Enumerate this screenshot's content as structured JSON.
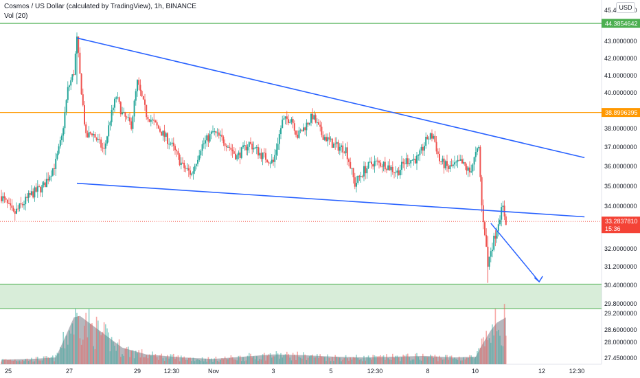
{
  "header": {
    "title": "Cosmos / US Dollar (calculated by TradingView), 1h, BINANCE",
    "volume_label": "Vol (20)",
    "currency_button": "USD"
  },
  "chart_data": {
    "type": "candlestick",
    "title": "Cosmos / US Dollar (calculated by TradingView), 1h, BINANCE",
    "timeframe": "1h",
    "exchange": "BINANCE",
    "ylim": [
      27.2,
      45.5
    ],
    "y_ticks": [
      {
        "label": "45.4000000",
        "value": 45.4
      },
      {
        "label": "43.0000000",
        "value": 43.0
      },
      {
        "label": "42.0000000",
        "value": 42.0
      },
      {
        "label": "41.0000000",
        "value": 41.0
      },
      {
        "label": "40.0000000",
        "value": 40.0
      },
      {
        "label": "38.0000000",
        "value": 38.0
      },
      {
        "label": "37.0000000",
        "value": 37.0
      },
      {
        "label": "36.0000000",
        "value": 36.0
      },
      {
        "label": "35.0000000",
        "value": 35.0
      },
      {
        "label": "34.0000000",
        "value": 34.0
      },
      {
        "label": "32.0000000",
        "value": 32.0
      },
      {
        "label": "31.2000000",
        "value": 31.2
      },
      {
        "label": "30.4000000",
        "value": 30.4
      },
      {
        "label": "29.8000000",
        "value": 29.8
      },
      {
        "label": "29.2000000",
        "value": 29.2
      },
      {
        "label": "28.6000000",
        "value": 28.6
      },
      {
        "label": "28.0000000",
        "value": 28.0
      },
      {
        "label": "27.4500000",
        "value": 27.45
      }
    ],
    "x_ticks": [
      "25",
      "27",
      "29",
      "12:30",
      "Nov",
      "3",
      "5",
      "12:30",
      "8",
      "10",
      "12",
      "12:30"
    ],
    "price_tags": [
      {
        "label": "44.3854642",
        "value": 44.3854642,
        "color": "#4caf50"
      },
      {
        "label": "38.8996395",
        "value": 38.8996395,
        "color": "#ff9800"
      },
      {
        "label": "33.2837810",
        "value": 33.283781,
        "color": "#f44336",
        "sublabel": "15:36"
      }
    ],
    "horizontal_lines": [
      {
        "value": 44.3854642,
        "color": "#4caf50"
      },
      {
        "value": 38.8996395,
        "color": "#ff9800"
      }
    ],
    "support_zone": {
      "low": 29.5,
      "high": 30.45,
      "color": "#4caf50"
    },
    "trendlines": [
      {
        "from": {
          "time": "Oct 27 08:00",
          "price": 43.25
        },
        "to": {
          "time": "Nov 12 18:00",
          "price": 36.45
        },
        "color": "#2962ff"
      },
      {
        "from": {
          "time": "Oct 27 08:00",
          "price": 35.15
        },
        "to": {
          "time": "Nov 12 18:00",
          "price": 33.5
        },
        "color": "#2962ff"
      }
    ],
    "arrow": {
      "from": {
        "time": "Nov 11 10:00",
        "price": 33.2
      },
      "to": {
        "time": "Nov 11 23:00",
        "price": 30.55
      },
      "color": "#2962ff"
    },
    "colors": {
      "up": "#26a69a",
      "down": "#ef5350",
      "volume_area": "#787b86"
    },
    "price_path": [
      {
        "t": 0,
        "p": 34.5
      },
      {
        "t": 4,
        "p": 33.6
      },
      {
        "t": 10,
        "p": 34.6
      },
      {
        "t": 14,
        "p": 35.0
      },
      {
        "t": 18,
        "p": 36.2
      },
      {
        "t": 20,
        "p": 37.5
      },
      {
        "t": 22,
        "p": 40.2
      },
      {
        "t": 24,
        "p": 41.2
      },
      {
        "t": 25,
        "p": 43.2
      },
      {
        "t": 26,
        "p": 41.0
      },
      {
        "t": 28,
        "p": 37.5
      },
      {
        "t": 30,
        "p": 37.8
      },
      {
        "t": 34,
        "p": 36.8
      },
      {
        "t": 36,
        "p": 38.5
      },
      {
        "t": 38,
        "p": 39.8
      },
      {
        "t": 40,
        "p": 38.8
      },
      {
        "t": 43,
        "p": 38.2
      },
      {
        "t": 45,
        "p": 40.6
      },
      {
        "t": 48,
        "p": 38.8
      },
      {
        "t": 52,
        "p": 38.0
      },
      {
        "t": 56,
        "p": 37.2
      },
      {
        "t": 60,
        "p": 36.0
      },
      {
        "t": 63,
        "p": 35.6
      },
      {
        "t": 66,
        "p": 37.0
      },
      {
        "t": 70,
        "p": 37.8
      },
      {
        "t": 74,
        "p": 37.3
      },
      {
        "t": 78,
        "p": 36.5
      },
      {
        "t": 82,
        "p": 37.2
      },
      {
        "t": 86,
        "p": 36.6
      },
      {
        "t": 90,
        "p": 36.2
      },
      {
        "t": 93,
        "p": 38.4
      },
      {
        "t": 96,
        "p": 38.6
      },
      {
        "t": 98,
        "p": 37.6
      },
      {
        "t": 100,
        "p": 38.0
      },
      {
        "t": 103,
        "p": 38.7
      },
      {
        "t": 106,
        "p": 37.7
      },
      {
        "t": 110,
        "p": 37.1
      },
      {
        "t": 114,
        "p": 36.9
      },
      {
        "t": 117,
        "p": 35.1
      },
      {
        "t": 120,
        "p": 35.8
      },
      {
        "t": 123,
        "p": 36.2
      },
      {
        "t": 127,
        "p": 36.1
      },
      {
        "t": 131,
        "p": 35.7
      },
      {
        "t": 134,
        "p": 36.3
      },
      {
        "t": 138,
        "p": 36.4
      },
      {
        "t": 141,
        "p": 37.5
      },
      {
        "t": 143,
        "p": 37.6
      },
      {
        "t": 145,
        "p": 36.3
      },
      {
        "t": 148,
        "p": 35.9
      },
      {
        "t": 152,
        "p": 36.2
      },
      {
        "t": 155,
        "p": 35.7
      },
      {
        "t": 157,
        "p": 36.6
      },
      {
        "t": 158,
        "p": 36.9
      },
      {
        "t": 159,
        "p": 34.0
      },
      {
        "t": 160,
        "p": 32.8
      },
      {
        "t": 161,
        "p": 31.2
      },
      {
        "t": 162,
        "p": 32.0
      },
      {
        "t": 163,
        "p": 32.4
      },
      {
        "t": 165,
        "p": 33.6
      },
      {
        "t": 166,
        "p": 33.9
      },
      {
        "t": 167,
        "p": 33.3
      }
    ],
    "volume_profile": [
      {
        "t": 0,
        "v": 0.06
      },
      {
        "t": 10,
        "v": 0.07
      },
      {
        "t": 18,
        "v": 0.09
      },
      {
        "t": 21,
        "v": 0.35
      },
      {
        "t": 24,
        "v": 0.62
      },
      {
        "t": 26,
        "v": 0.64
      },
      {
        "t": 30,
        "v": 0.52
      },
      {
        "t": 34,
        "v": 0.4
      },
      {
        "t": 40,
        "v": 0.22
      },
      {
        "t": 48,
        "v": 0.13
      },
      {
        "t": 60,
        "v": 0.09
      },
      {
        "t": 70,
        "v": 0.07
      },
      {
        "t": 80,
        "v": 0.1
      },
      {
        "t": 90,
        "v": 0.13
      },
      {
        "t": 100,
        "v": 0.12
      },
      {
        "t": 110,
        "v": 0.1
      },
      {
        "t": 120,
        "v": 0.09
      },
      {
        "t": 130,
        "v": 0.1
      },
      {
        "t": 140,
        "v": 0.11
      },
      {
        "t": 150,
        "v": 0.09
      },
      {
        "t": 157,
        "v": 0.1
      },
      {
        "t": 159,
        "v": 0.25
      },
      {
        "t": 162,
        "v": 0.45
      },
      {
        "t": 164,
        "v": 0.55
      },
      {
        "t": 167,
        "v": 0.62
      }
    ]
  }
}
